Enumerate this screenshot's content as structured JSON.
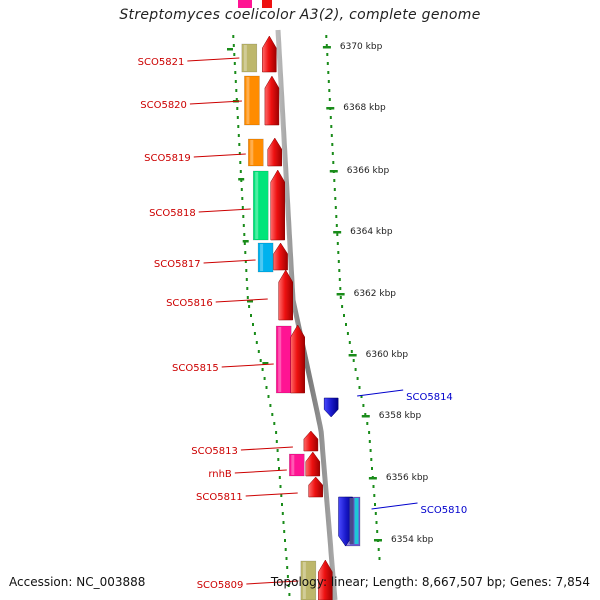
{
  "title": "Streptomyces coelicolor A3(2), complete genome",
  "footer": {
    "accession": "Accession: NC_003888",
    "summary": "Topology: linear; Length: 8,667,507 bp; Genes: 7,854"
  },
  "colors": {
    "backbone": "#8a8a8a",
    "tick": "#1a8c1a",
    "label_forward": "#cc0000",
    "label_reverse": "#0000cc",
    "gene_arrow": "#ee1111",
    "reverse_gene": "#1a1acc"
  },
  "scale": {
    "unit": "kbp",
    "labels": [
      "6370 kbp",
      "6368 kbp",
      "6366 kbp",
      "6364 kbp",
      "6362 kbp",
      "6360 kbp",
      "6358 kbp",
      "6356 kbp",
      "6354 kbp"
    ]
  },
  "genes": [
    {
      "label": "SCO5821",
      "strand": "forward",
      "cog_color": "#bdb76b"
    },
    {
      "label": "SCO5820",
      "strand": "forward",
      "cog_color": "#ff8c00"
    },
    {
      "label": "SCO5819",
      "strand": "forward",
      "cog_color": "#ff8c00"
    },
    {
      "label": "SCO5818",
      "strand": "forward",
      "cog_color": "#00e57a"
    },
    {
      "label": "SCO5817",
      "strand": "forward",
      "cog_color": "#00b2ee"
    },
    {
      "label": "SCO5816",
      "strand": "forward",
      "cog_color": ""
    },
    {
      "label": "SCO5815",
      "strand": "forward",
      "cog_color": "#ff1493"
    },
    {
      "label": "SCO5814",
      "strand": "reverse",
      "cog_color": ""
    },
    {
      "label": "SCO5813",
      "strand": "forward",
      "cog_color": ""
    },
    {
      "label": "rnhB",
      "strand": "forward",
      "cog_color": "#ff1493"
    },
    {
      "label": "SCO5811",
      "strand": "forward",
      "cog_color": ""
    },
    {
      "label": "SCO5810",
      "strand": "reverse",
      "cog_color": "#6a5acd"
    },
    {
      "label": "SCO5809",
      "strand": "forward",
      "cog_color": "#bdb76b"
    }
  ]
}
